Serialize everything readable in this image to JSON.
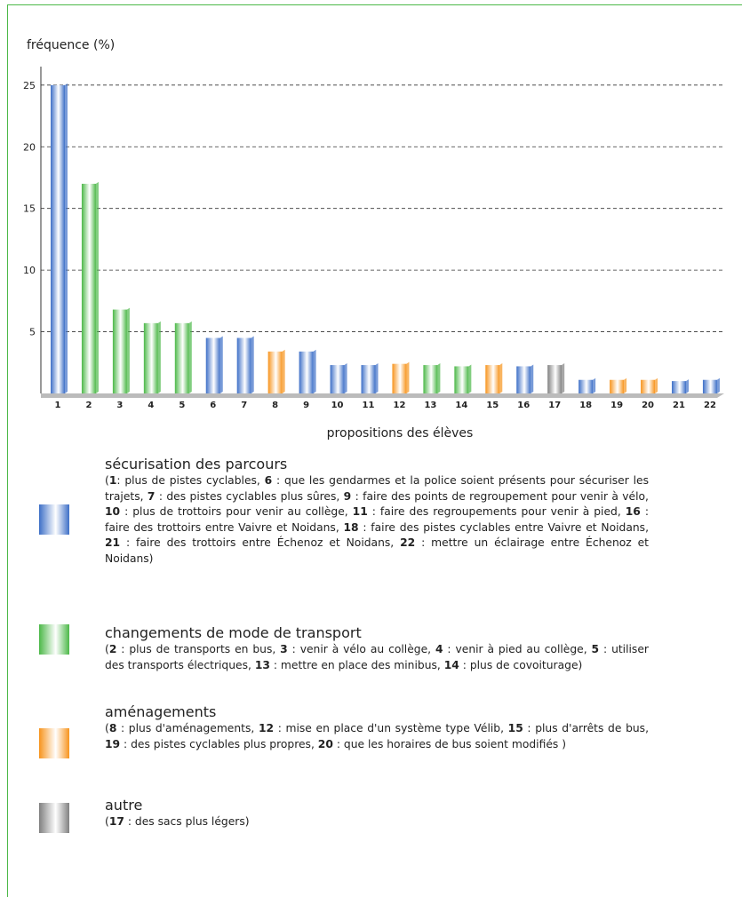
{
  "chart_data": {
    "type": "bar",
    "y_label": "fréquence (%)",
    "x_label": "propositions des élèves",
    "categories": [
      "1",
      "2",
      "3",
      "4",
      "5",
      "6",
      "7",
      "8",
      "9",
      "10",
      "11",
      "12",
      "13",
      "14",
      "15",
      "16",
      "17",
      "18",
      "19",
      "20",
      "21",
      "22"
    ],
    "values": [
      25,
      17,
      6.8,
      5.7,
      5.7,
      4.5,
      4.5,
      3.4,
      3.4,
      2.3,
      2.3,
      2.4,
      2.3,
      2.2,
      2.3,
      2.2,
      2.3,
      1.1,
      1.1,
      1.1,
      1.0,
      1.1
    ],
    "colors": [
      "#3d6fc7",
      "#4cb848",
      "#4cb848",
      "#4cb848",
      "#4cb848",
      "#3d6fc7",
      "#3d6fc7",
      "#f7941d",
      "#3d6fc7",
      "#3d6fc7",
      "#3d6fc7",
      "#f7941d",
      "#4cb848",
      "#4cb848",
      "#f7941d",
      "#3d6fc7",
      "#808080",
      "#3d6fc7",
      "#f7941d",
      "#f7941d",
      "#3d6fc7",
      "#3d6fc7"
    ],
    "ylim": [
      0,
      26.5
    ],
    "yticks": [
      5,
      10,
      15,
      20,
      25
    ],
    "grid": true,
    "legend": [
      {
        "name": "sécurisation des parcours",
        "color": "#3d6fc7",
        "description": [
          "(",
          "1",
          ": plus de pistes cyclables, ",
          "6",
          " : que les gendarmes et la police soient présents pour sécuriser les trajets, ",
          "7",
          " : des pistes cyclables plus sûres, ",
          "9",
          " : faire des points de regroupement pour venir à vélo, ",
          "10",
          " : plus de trottoirs pour venir au collège, ",
          "11",
          " : faire des regroupements pour venir à pied, ",
          "16",
          " : faire des trottoirs entre Vaivre et Noidans, ",
          "18",
          " : faire des pistes cyclables entre Vaivre et Noidans, ",
          "21",
          " : faire des trottoirs entre Échenoz et Noidans, ",
          "22",
          " : mettre un éclairage entre Échenoz et Noidans)"
        ]
      },
      {
        "name": "changements de mode de transport",
        "color": "#4cb848",
        "description": [
          "(",
          "2",
          " : plus de transports en bus, ",
          "3",
          " : venir à vélo au collège, ",
          "4",
          " : venir à pied au collège, ",
          "5",
          " : utiliser des transports électriques, ",
          "13",
          " : mettre en place des minibus, ",
          "14",
          " : plus de covoiturage)"
        ]
      },
      {
        "name": "aménagements",
        "color": "#f7941d",
        "description": [
          "(",
          "8",
          " : plus d'aménagements, ",
          "12",
          " : mise en place d'un système type Vélib, ",
          "15",
          " : plus d'arrêts de bus, ",
          "19",
          " : des pistes cyclables plus propres, ",
          "20",
          " : que les horaires de bus soient modifiés )"
        ]
      },
      {
        "name": "autre",
        "color": "#808080",
        "description": [
          "(",
          "17",
          " : des sacs plus légers)"
        ]
      }
    ]
  }
}
